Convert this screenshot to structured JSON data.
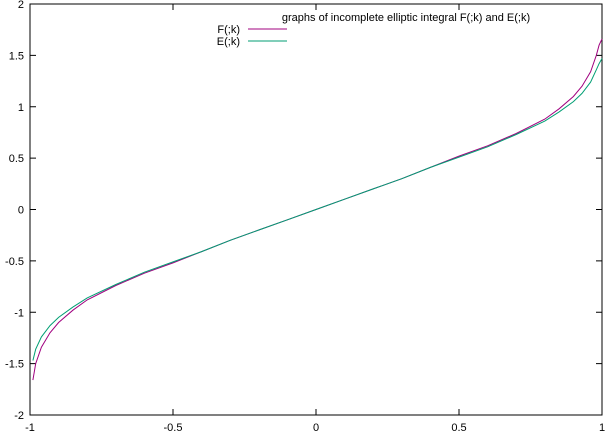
{
  "chart_data": {
    "type": "line",
    "title": "",
    "xlabel": "",
    "ylabel": "",
    "xlim": [
      -1,
      1
    ],
    "ylim": [
      -2,
      2
    ],
    "xticks": [
      -1,
      -0.5,
      0,
      0.5,
      1
    ],
    "xtick_labels": [
      "-1",
      "-0.5",
      "0",
      "0.5",
      "1"
    ],
    "yticks": [
      2,
      1.5,
      1,
      0.5,
      0,
      -0.5,
      -1,
      -1.5,
      -2
    ],
    "ytick_labels": [
      "2",
      "1.5",
      "1",
      "0.5",
      "0",
      "-0.5",
      "-1",
      "-1.5",
      "-2"
    ],
    "grid": false,
    "legend": {
      "placement": "top-center",
      "key_title": "graphs of incomplete elliptic integral F(;k) and E(;k)"
    },
    "series": [
      {
        "name": "F(;k)",
        "color": "#a0007f",
        "x": [
          -0.99,
          -0.98,
          -0.96,
          -0.93,
          -0.9,
          -0.85,
          -0.8,
          -0.7,
          -0.6,
          -0.5,
          -0.4,
          -0.3,
          -0.2,
          -0.1,
          0,
          0.1,
          0.2,
          0.3,
          0.4,
          0.5,
          0.6,
          0.7,
          0.8,
          0.85,
          0.9,
          0.93,
          0.96,
          0.98,
          0.99,
          1.0
        ],
        "y": [
          -1.66,
          -1.5,
          -1.34,
          -1.2,
          -1.1,
          -0.98,
          -0.88,
          -0.74,
          -0.62,
          -0.52,
          -0.41,
          -0.3,
          -0.2,
          -0.1,
          0,
          0.1,
          0.2,
          0.3,
          0.41,
          0.52,
          0.62,
          0.74,
          0.88,
          0.98,
          1.1,
          1.2,
          1.34,
          1.5,
          1.6,
          1.66
        ]
      },
      {
        "name": "E(;k)",
        "color": "#009e73",
        "x": [
          -0.99,
          -0.98,
          -0.96,
          -0.93,
          -0.9,
          -0.85,
          -0.8,
          -0.7,
          -0.6,
          -0.5,
          -0.4,
          -0.3,
          -0.2,
          -0.1,
          0,
          0.1,
          0.2,
          0.3,
          0.4,
          0.5,
          0.6,
          0.7,
          0.8,
          0.85,
          0.9,
          0.93,
          0.96,
          0.98,
          0.99,
          1.0
        ],
        "y": [
          -1.47,
          -1.36,
          -1.24,
          -1.13,
          -1.05,
          -0.95,
          -0.86,
          -0.73,
          -0.61,
          -0.51,
          -0.41,
          -0.3,
          -0.2,
          -0.1,
          0,
          0.1,
          0.2,
          0.3,
          0.41,
          0.51,
          0.61,
          0.73,
          0.86,
          0.95,
          1.05,
          1.13,
          1.24,
          1.36,
          1.42,
          1.47
        ]
      }
    ]
  }
}
